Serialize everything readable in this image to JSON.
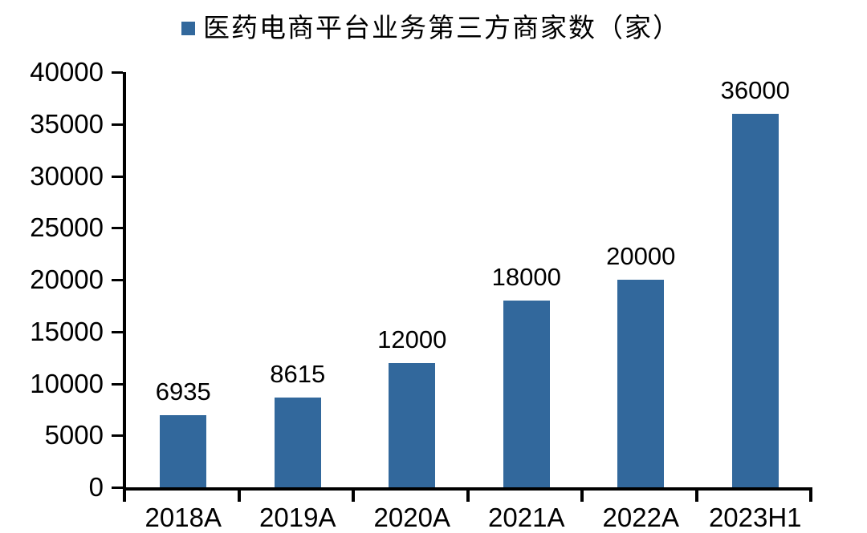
{
  "legend": {
    "label": "医药电商平台业务第三方商家数（家）",
    "marker_color": "#32689C",
    "marker_icon": "square-icon"
  },
  "chart_data": {
    "type": "bar",
    "title": "医药电商平台业务第三方商家数（家）",
    "categories": [
      "2018A",
      "2019A",
      "2020A",
      "2021A",
      "2022A",
      "2023H1"
    ],
    "values": [
      6935,
      8615,
      12000,
      18000,
      20000,
      36000
    ],
    "value_labels": [
      "6935",
      "8615",
      "12000",
      "18000",
      "20000",
      "36000"
    ],
    "xlabel": "",
    "ylabel": "",
    "ylim": [
      0,
      40000
    ],
    "ytick_step": 5000,
    "ytick_labels": [
      "0",
      "5000",
      "10000",
      "15000",
      "20000",
      "25000",
      "30000",
      "35000",
      "40000"
    ],
    "bar_color": "#32689C",
    "axis_color": "#000000",
    "text_color": "#000000",
    "grid": false,
    "legend_position": "top"
  }
}
